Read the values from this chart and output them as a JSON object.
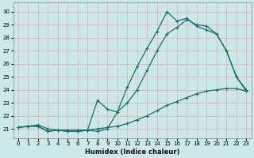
{
  "xlabel": "Humidex (Indice chaleur)",
  "ylabel": "",
  "background_color": "#cce8e8",
  "grid_color": "#b8d8d8",
  "line_color": "#1a6b6b",
  "xlim": [
    -0.5,
    23.5
  ],
  "ylim": [
    20.3,
    30.7
  ],
  "xticks": [
    0,
    1,
    2,
    3,
    4,
    5,
    6,
    7,
    8,
    9,
    10,
    11,
    12,
    13,
    14,
    15,
    16,
    17,
    18,
    19,
    20,
    21,
    22,
    23
  ],
  "yticks": [
    21,
    22,
    23,
    24,
    25,
    26,
    27,
    28,
    29,
    30
  ],
  "line1_x": [
    0,
    1,
    2,
    3,
    4,
    5,
    6,
    7,
    8,
    9,
    10,
    11,
    12,
    13,
    14,
    15,
    16,
    17,
    18,
    19,
    20,
    21,
    22,
    23
  ],
  "line1_y": [
    21.1,
    21.2,
    21.2,
    20.8,
    20.9,
    20.8,
    20.8,
    20.9,
    20.8,
    21.0,
    22.3,
    23.0,
    24.0,
    25.5,
    27.0,
    28.3,
    28.8,
    29.4,
    29.0,
    28.9,
    28.3,
    27.0,
    25.0,
    24.0
  ],
  "line2_x": [
    0,
    1,
    2,
    3,
    4,
    5,
    6,
    7,
    8,
    9,
    10,
    11,
    12,
    13,
    14,
    15,
    16,
    17,
    18,
    19,
    20,
    21,
    22,
    23
  ],
  "line2_y": [
    21.1,
    21.2,
    21.2,
    20.8,
    20.9,
    20.8,
    20.8,
    20.9,
    23.2,
    22.5,
    22.3,
    24.2,
    25.8,
    27.2,
    28.5,
    30.0,
    29.3,
    29.5,
    28.9,
    28.6,
    28.3,
    27.0,
    25.0,
    23.9
  ],
  "line3_x": [
    0,
    1,
    2,
    3,
    4,
    5,
    6,
    7,
    8,
    9,
    10,
    11,
    12,
    13,
    14,
    15,
    16,
    17,
    18,
    19,
    20,
    21,
    22,
    23
  ],
  "line3_y": [
    21.1,
    21.2,
    21.3,
    21.0,
    20.9,
    20.9,
    20.9,
    20.9,
    21.0,
    21.1,
    21.2,
    21.4,
    21.7,
    22.0,
    22.4,
    22.8,
    23.1,
    23.4,
    23.7,
    23.9,
    24.0,
    24.1,
    24.1,
    23.9
  ]
}
